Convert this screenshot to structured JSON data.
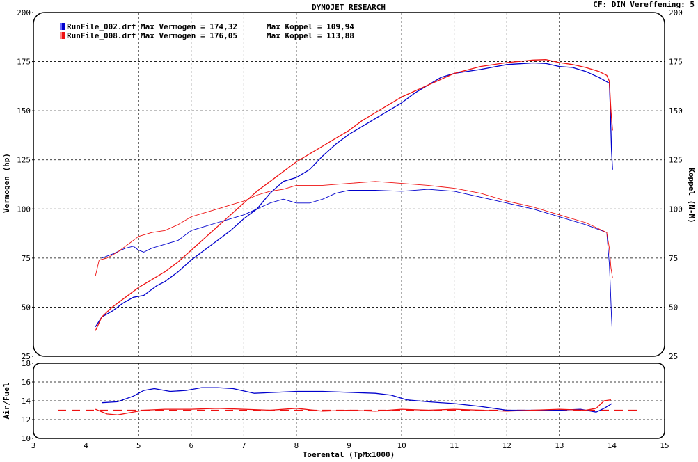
{
  "header": {
    "title": "DYNOJET RESEARCH",
    "cf_text": "CF: DIN  Vereffening: 5"
  },
  "legend": [
    {
      "file": "RunFile_002.drf",
      "text": "RunFile_002.drf Max Vermogen = 174,32",
      "koppel_text": "Max Koppel = 109,94",
      "color": "#0000cc"
    },
    {
      "file": "RunFile_008.drf",
      "text": "RunFile_008.drf Max Vermogen = 176,05",
      "koppel_text": "Max Koppel = 113,88",
      "color": "#ee1111"
    }
  ],
  "chart_data": [
    {
      "type": "line",
      "title": "DYNOJET RESEARCH",
      "ylabel": "Vermogen (hp)",
      "ylabel_right": "Koppel (N-M)",
      "xlim": [
        3,
        15
      ],
      "ylim": [
        25,
        200
      ],
      "yticks": [
        25,
        50,
        75,
        100,
        125,
        150,
        175,
        200
      ],
      "grid": true,
      "series": [
        {
          "name": "RunFile_002.drf",
          "measure": "Vermogen",
          "color": "#0000cc",
          "points": [
            [
              4.18,
              40
            ],
            [
              4.3,
              45
            ],
            [
              4.5,
              48
            ],
            [
              4.7,
              52
            ],
            [
              4.9,
              55
            ],
            [
              5.1,
              56
            ],
            [
              5.25,
              59
            ],
            [
              5.35,
              61
            ],
            [
              5.5,
              63
            ],
            [
              5.75,
              68
            ],
            [
              6,
              74
            ],
            [
              6.25,
              79
            ],
            [
              6.5,
              84
            ],
            [
              6.75,
              89
            ],
            [
              7,
              95
            ],
            [
              7.25,
              100
            ],
            [
              7.5,
              108
            ],
            [
              7.75,
              114
            ],
            [
              8,
              116
            ],
            [
              8.25,
              120
            ],
            [
              8.5,
              127
            ],
            [
              8.75,
              133
            ],
            [
              9,
              138
            ],
            [
              9.25,
              142
            ],
            [
              9.5,
              146
            ],
            [
              9.75,
              150
            ],
            [
              10,
              154
            ],
            [
              10.25,
              159
            ],
            [
              10.5,
              163
            ],
            [
              10.75,
              167
            ],
            [
              11,
              169
            ],
            [
              11.5,
              171
            ],
            [
              12,
              173.5
            ],
            [
              12.5,
              174.3
            ],
            [
              12.75,
              174
            ],
            [
              13,
              172.5
            ],
            [
              13.25,
              172
            ],
            [
              13.5,
              170
            ],
            [
              13.75,
              167
            ],
            [
              13.95,
              164
            ],
            [
              13.97,
              150
            ],
            [
              13.99,
              130
            ],
            [
              14.01,
              120
            ]
          ]
        },
        {
          "name": "RunFile_008.drf",
          "measure": "Vermogen",
          "color": "#ee1111",
          "points": [
            [
              4.18,
              38
            ],
            [
              4.3,
              45
            ],
            [
              4.5,
              50
            ],
            [
              4.75,
              55
            ],
            [
              5,
              60
            ],
            [
              5.25,
              64
            ],
            [
              5.5,
              68
            ],
            [
              5.75,
              73
            ],
            [
              6,
              79
            ],
            [
              6.25,
              85
            ],
            [
              6.5,
              91
            ],
            [
              6.75,
              97
            ],
            [
              7,
              103
            ],
            [
              7.25,
              109
            ],
            [
              7.5,
              114
            ],
            [
              7.75,
              119
            ],
            [
              8,
              124
            ],
            [
              8.25,
              128
            ],
            [
              8.5,
              132
            ],
            [
              8.75,
              136
            ],
            [
              9,
              140
            ],
            [
              9.25,
              145
            ],
            [
              9.5,
              149
            ],
            [
              9.75,
              153
            ],
            [
              10,
              157
            ],
            [
              10.25,
              160
            ],
            [
              10.5,
              163
            ],
            [
              10.75,
              166
            ],
            [
              11,
              169
            ],
            [
              11.5,
              172.5
            ],
            [
              12,
              174.5
            ],
            [
              12.5,
              175.8
            ],
            [
              12.75,
              176
            ],
            [
              13,
              174.5
            ],
            [
              13.25,
              173.5
            ],
            [
              13.5,
              172
            ],
            [
              13.75,
              170
            ],
            [
              13.9,
              168
            ],
            [
              13.95,
              165
            ],
            [
              13.98,
              150
            ],
            [
              14.01,
              140
            ]
          ]
        },
        {
          "name": "RunFile_002.drf",
          "measure": "Koppel",
          "color": "#0000cc",
          "points": [
            [
              4.3,
              75
            ],
            [
              4.5,
              77
            ],
            [
              4.75,
              80
            ],
            [
              4.9,
              81
            ],
            [
              5.0,
              79
            ],
            [
              5.1,
              78
            ],
            [
              5.25,
              80
            ],
            [
              5.5,
              82
            ],
            [
              5.75,
              84
            ],
            [
              6,
              89
            ],
            [
              6.25,
              91
            ],
            [
              6.5,
              93
            ],
            [
              6.75,
              95
            ],
            [
              7,
              97
            ],
            [
              7.25,
              100
            ],
            [
              7.5,
              103
            ],
            [
              7.75,
              105
            ],
            [
              8,
              103
            ],
            [
              8.25,
              103
            ],
            [
              8.5,
              105
            ],
            [
              8.75,
              108
            ],
            [
              9,
              109.5
            ],
            [
              9.5,
              109.5
            ],
            [
              10,
              109
            ],
            [
              10.5,
              110
            ],
            [
              11,
              109
            ],
            [
              11.5,
              106
            ],
            [
              12,
              103
            ],
            [
              12.5,
              100
            ],
            [
              13,
              96
            ],
            [
              13.5,
              92
            ],
            [
              13.9,
              88
            ],
            [
              13.95,
              72
            ],
            [
              13.97,
              60
            ],
            [
              13.99,
              45
            ],
            [
              14.0,
              40
            ]
          ]
        },
        {
          "name": "RunFile_008.drf",
          "measure": "Koppel",
          "color": "#ee1111",
          "points": [
            [
              4.18,
              66
            ],
            [
              4.25,
              74
            ],
            [
              4.4,
              75
            ],
            [
              4.6,
              78
            ],
            [
              4.8,
              82
            ],
            [
              5,
              86
            ],
            [
              5.25,
              88
            ],
            [
              5.5,
              89
            ],
            [
              5.75,
              92
            ],
            [
              6,
              96
            ],
            [
              6.25,
              98
            ],
            [
              6.5,
              100
            ],
            [
              6.75,
              102
            ],
            [
              7,
              104
            ],
            [
              7.25,
              107
            ],
            [
              7.5,
              109
            ],
            [
              7.75,
              110
            ],
            [
              8,
              112
            ],
            [
              8.5,
              112
            ],
            [
              9,
              113
            ],
            [
              9.5,
              114
            ],
            [
              10,
              113
            ],
            [
              10.5,
              112
            ],
            [
              11,
              110.5
            ],
            [
              11.5,
              108
            ],
            [
              12,
              104
            ],
            [
              12.5,
              101
            ],
            [
              13,
              97
            ],
            [
              13.5,
              93
            ],
            [
              13.9,
              88
            ],
            [
              13.95,
              80
            ],
            [
              13.98,
              70
            ],
            [
              14.01,
              65
            ]
          ]
        }
      ]
    },
    {
      "type": "line",
      "xlabel": "Toerental (TpMx1000)",
      "ylabel": "Air/Fuel",
      "xlim": [
        3,
        15
      ],
      "ylim": [
        10,
        18
      ],
      "xticks": [
        3,
        4,
        5,
        6,
        7,
        8,
        9,
        10,
        11,
        12,
        13,
        14,
        15
      ],
      "yticks": [
        10,
        12,
        14,
        16,
        18
      ],
      "grid": true,
      "reference_line": 13,
      "series": [
        {
          "name": "RunFile_002.drf",
          "color": "#0000cc",
          "points": [
            [
              4.3,
              13.8
            ],
            [
              4.6,
              13.9
            ],
            [
              4.9,
              14.5
            ],
            [
              5.1,
              15.1
            ],
            [
              5.3,
              15.3
            ],
            [
              5.6,
              15.0
            ],
            [
              5.9,
              15.1
            ],
            [
              6.2,
              15.4
            ],
            [
              6.5,
              15.4
            ],
            [
              6.8,
              15.3
            ],
            [
              7.2,
              14.8
            ],
            [
              7.6,
              14.9
            ],
            [
              8,
              15.0
            ],
            [
              8.5,
              15.0
            ],
            [
              9,
              14.9
            ],
            [
              9.5,
              14.8
            ],
            [
              9.8,
              14.6
            ],
            [
              10.1,
              14.1
            ],
            [
              10.5,
              13.9
            ],
            [
              11,
              13.7
            ],
            [
              11.5,
              13.4
            ],
            [
              12,
              13.0
            ],
            [
              12.5,
              13.0
            ],
            [
              13,
              13.0
            ],
            [
              13.4,
              13.1
            ],
            [
              13.7,
              12.8
            ],
            [
              13.85,
              13.2
            ],
            [
              14.0,
              13.7
            ]
          ]
        },
        {
          "name": "RunFile_008.drf",
          "color": "#ee1111",
          "points": [
            [
              4.18,
              13.1
            ],
            [
              4.4,
              12.6
            ],
            [
              4.6,
              12.5
            ],
            [
              4.8,
              12.7
            ],
            [
              5.1,
              13.0
            ],
            [
              5.5,
              13.1
            ],
            [
              6,
              13.1
            ],
            [
              6.5,
              13.2
            ],
            [
              7,
              13.1
            ],
            [
              7.5,
              13.0
            ],
            [
              8,
              13.2
            ],
            [
              8.5,
              12.9
            ],
            [
              9,
              13.0
            ],
            [
              9.5,
              12.9
            ],
            [
              10,
              13.1
            ],
            [
              10.5,
              13.0
            ],
            [
              11,
              13.1
            ],
            [
              11.5,
              13.0
            ],
            [
              12,
              12.9
            ],
            [
              12.5,
              13.0
            ],
            [
              13,
              13.1
            ],
            [
              13.5,
              13.0
            ],
            [
              13.7,
              13.2
            ],
            [
              13.85,
              14.0
            ],
            [
              13.98,
              14.1
            ]
          ]
        }
      ]
    }
  ]
}
